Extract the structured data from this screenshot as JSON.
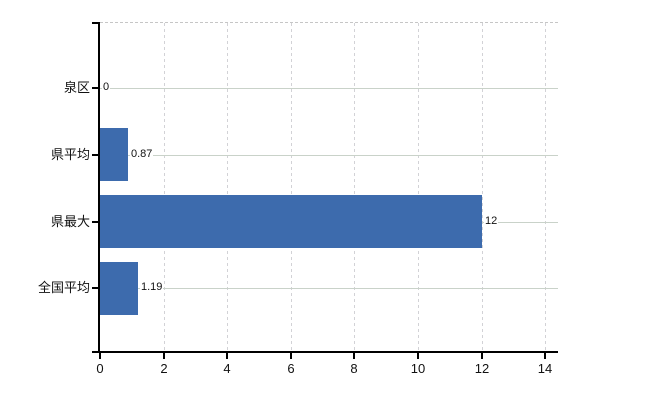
{
  "chart_data": {
    "type": "bar",
    "orientation": "horizontal",
    "categories": [
      "泉区",
      "県平均",
      "県最大",
      "全国平均"
    ],
    "values": [
      0,
      0.87,
      12,
      1.19
    ],
    "value_labels": [
      "0",
      "0.87",
      "12",
      "1.19"
    ],
    "x_ticks": [
      0,
      2,
      4,
      6,
      8,
      10,
      12,
      14
    ],
    "x_tick_labels": [
      "0",
      "2",
      "4",
      "6",
      "8",
      "10",
      "12",
      "14"
    ],
    "xlim": [
      0,
      14.4
    ],
    "grid": "on",
    "legend": "none",
    "title": "",
    "colors": {
      "bar": "#3d6bad",
      "axis": "#000000",
      "grid_vertical": "#d2d2d6",
      "grid_horizontal": "#c9d2c9",
      "plot_border_top": "#c6c6c6",
      "text": "#111111",
      "background": "#ffffff"
    }
  }
}
